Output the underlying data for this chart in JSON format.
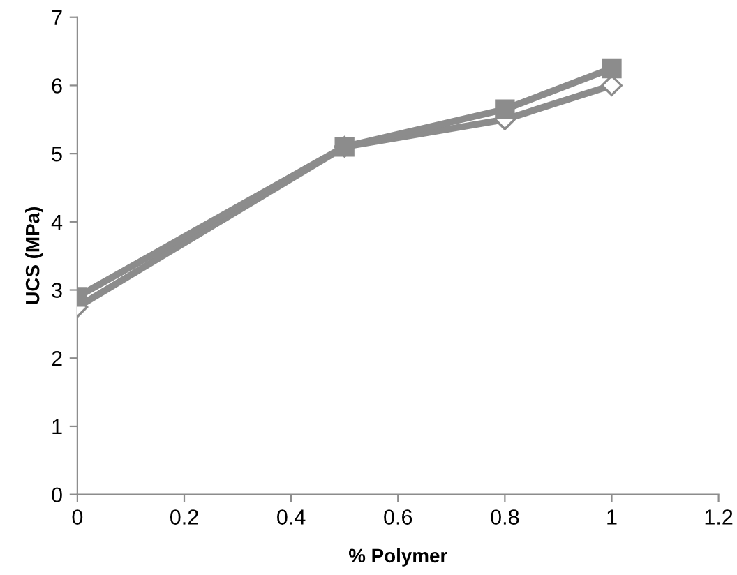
{
  "chart_data": {
    "type": "line",
    "xlabel": "% Polymer",
    "ylabel": "UCS (MPa)",
    "x": [
      0,
      0.5,
      0.8,
      1
    ],
    "series": [
      {
        "color": "#8c8c8c",
        "marker": "diamond",
        "values": [
          2.75,
          5.1,
          5.5,
          6.0
        ]
      },
      {
        "color": "#8c8c8c",
        "marker": "square",
        "values": [
          2.9,
          5.1,
          5.65,
          6.25
        ]
      }
    ],
    "xlim": [
      0,
      1.2
    ],
    "xticks": [
      0,
      0.2,
      0.4,
      0.6,
      0.8,
      1,
      1.2
    ],
    "ylim": [
      0,
      7
    ],
    "yticks": [
      0,
      1,
      2,
      3,
      4,
      5,
      6,
      7
    ],
    "grid": false,
    "legend": false,
    "line_style": "solid"
  }
}
